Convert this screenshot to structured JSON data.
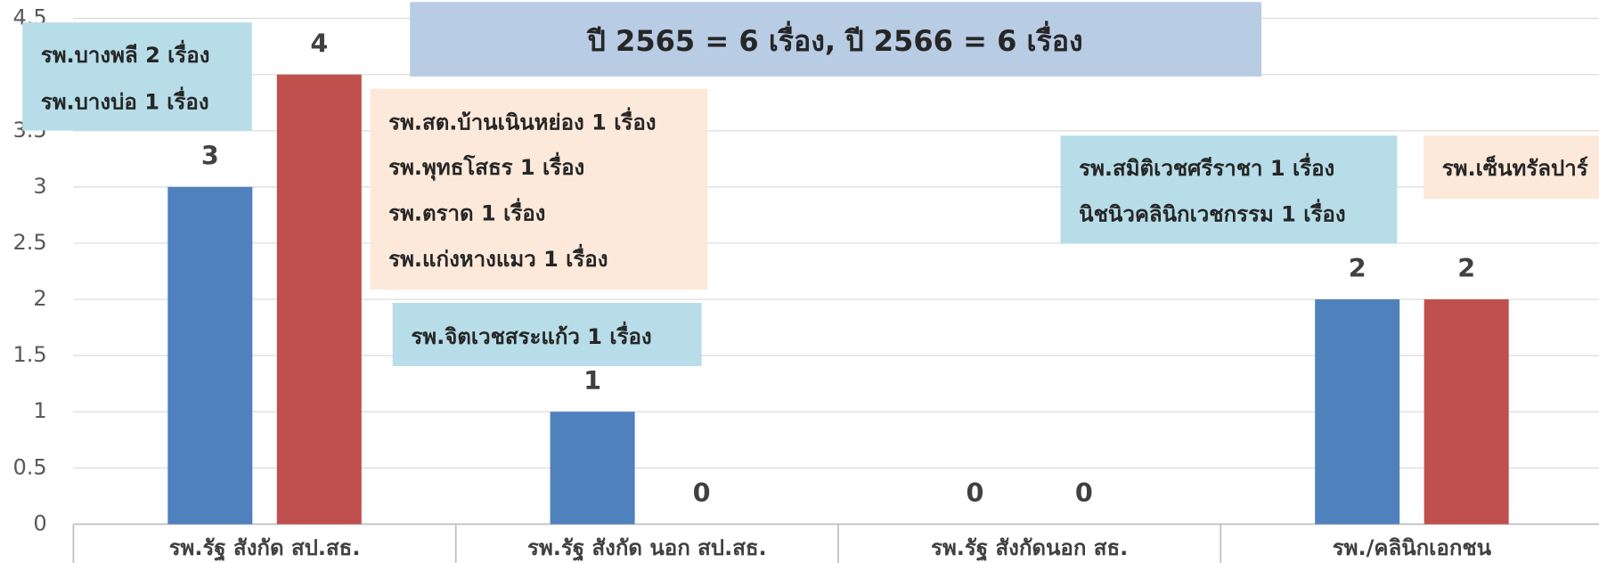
{
  "chart_data": {
    "type": "bar",
    "title": "ปี 2565 = 6 เรื่อง, ปี 2566 = 6 เรื่อง",
    "categories": [
      "รพ.รัฐ สังกัด สป.สธ.",
      "รพ.รัฐ สังกัด นอก สป.สธ.",
      "รพ.รัฐ สังกัดนอก สธ.",
      "รพ./คลินิกเอกชน"
    ],
    "series": [
      {
        "color": "#4f81bd",
        "values": [
          3,
          1,
          0,
          2
        ]
      },
      {
        "color": "#c0504d",
        "values": [
          4,
          0,
          0,
          2
        ]
      }
    ],
    "ylim": [
      0,
      4.5
    ],
    "yticks": [
      0,
      0.5,
      1,
      1.5,
      2,
      2.5,
      3,
      3.5,
      4,
      4.5
    ],
    "grid": true,
    "annotations": [
      {
        "color": "#b7dde8",
        "lines": [
          "รพ.บางพลี 2 เรื่อง",
          "รพ.บางบ่อ 1 เรื่อง"
        ]
      },
      {
        "color": "#fde9d9",
        "lines": [
          "รพ.สต.บ้านเนินหย่อง 1 เรื่อง",
          "รพ.พุทธโสธร 1 เรื่อง",
          "รพ.ตราด 1 เรื่อง",
          "รพ.แก่งหางแมว 1 เรื่อง"
        ]
      },
      {
        "color": "#b7dde8",
        "lines": [
          "รพ.จิตเวชสระแก้ว 1 เรื่อง"
        ]
      },
      {
        "color": "#b7dde8",
        "lines": [
          "รพ.สมิติเวชศรีราชา 1 เรื่อง",
          "นิชนิวคลินิกเวชกรรม 1 เรื่อง"
        ]
      },
      {
        "color": "#fde9d9",
        "lines": [
          "รพ.เซ็นทรัลปาร์"
        ]
      }
    ]
  }
}
